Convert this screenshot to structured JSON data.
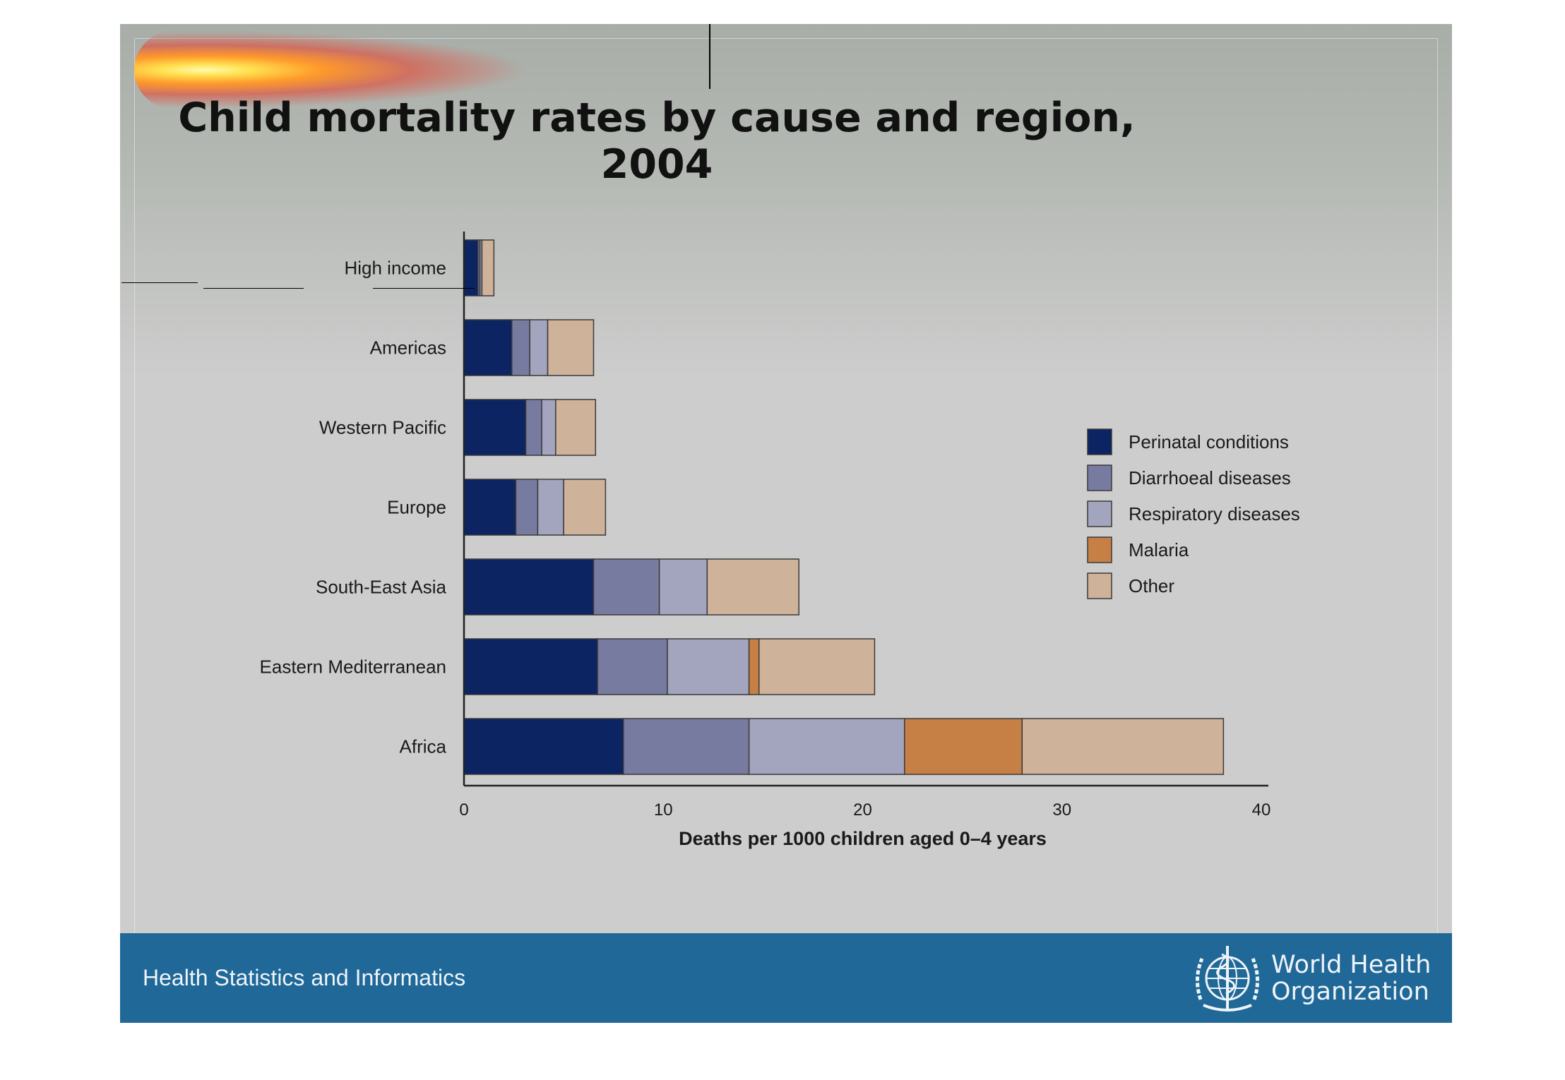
{
  "title": "Child mortality rates by cause and region, 2004",
  "footer": {
    "label": "Health Statistics and Informatics",
    "org_line1": "World Health",
    "org_line2": "Organization",
    "logo_icon": "who-emblem-icon"
  },
  "colors": {
    "background": "#cdcdcd",
    "footer": "#1f6898",
    "perinatal": "#0c2461",
    "diarrhoeal": "#787ba0",
    "respiratory": "#a3a4bd",
    "malaria": "#c67f45",
    "other": "#cfb29a"
  },
  "chart_data": {
    "type": "bar",
    "orientation": "horizontal",
    "stacked": true,
    "title": "Child mortality rates by cause and region, 2004",
    "xlabel": "Deaths per 1000 children aged 0–4 years",
    "ylabel": "",
    "xlim": [
      0,
      40
    ],
    "xticks": [
      0,
      10,
      20,
      30,
      40
    ],
    "grid": false,
    "legend_position": "right",
    "categories": [
      "High income",
      "Americas",
      "Western Pacific",
      "Europe",
      "South-East Asia",
      "Eastern Mediterranean",
      "Africa"
    ],
    "series": [
      {
        "name": "Perinatal conditions",
        "color": "#0c2461",
        "values": [
          0.7,
          2.4,
          3.1,
          2.6,
          6.5,
          6.7,
          8.0
        ]
      },
      {
        "name": "Diarrhoeal diseases",
        "color": "#787ba0",
        "values": [
          0.1,
          0.9,
          0.8,
          1.1,
          3.3,
          3.5,
          6.3
        ]
      },
      {
        "name": "Respiratory diseases",
        "color": "#a3a4bd",
        "values": [
          0.1,
          0.9,
          0.7,
          1.3,
          2.4,
          4.1,
          7.8
        ]
      },
      {
        "name": "Malaria",
        "color": "#c67f45",
        "values": [
          0,
          0,
          0,
          0,
          0,
          0.5,
          5.9
        ]
      },
      {
        "name": "Other",
        "color": "#cfb29a",
        "values": [
          0.6,
          2.3,
          2.0,
          2.1,
          4.6,
          5.8,
          10.1
        ]
      }
    ]
  }
}
